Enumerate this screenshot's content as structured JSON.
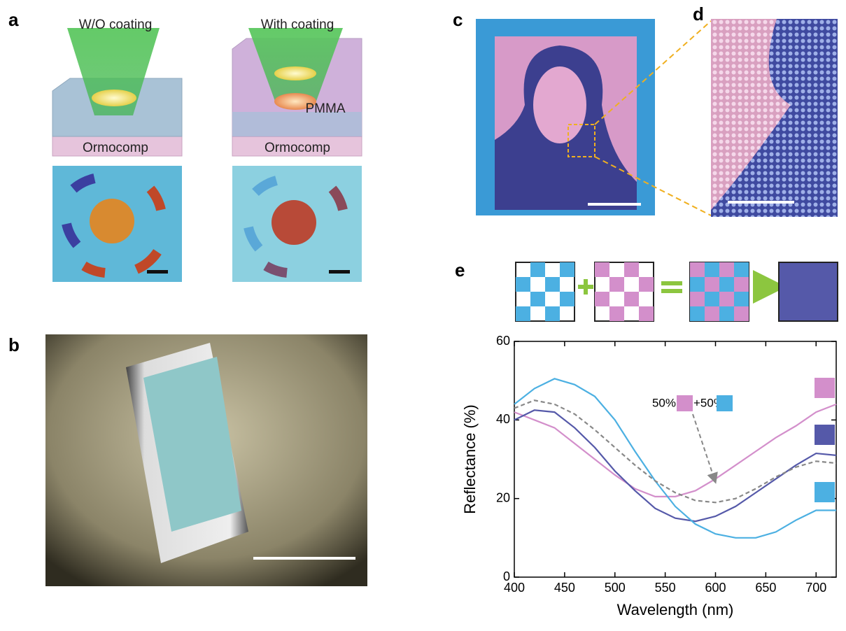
{
  "panels": {
    "a": {
      "label": "a",
      "left_title": "W/O coating",
      "right_title": "With coating",
      "pmma": "PMMA",
      "left_substrate": "Ormocomp",
      "right_substrate": "Ormocomp"
    },
    "b": {
      "label": "b"
    },
    "c": {
      "label": "c"
    },
    "d": {
      "label": "d"
    },
    "e": {
      "label": "e"
    }
  },
  "chart_data": {
    "type": "line",
    "xlabel": "Wavelength (nm)",
    "ylabel": "Reflectance (%)",
    "x": [
      400,
      420,
      440,
      460,
      480,
      500,
      520,
      540,
      560,
      580,
      600,
      620,
      640,
      660,
      680,
      700,
      720
    ],
    "series": [
      {
        "color": "#d38fcb",
        "values": [
          42,
          40,
          38,
          34,
          30,
          26,
          22.5,
          20.5,
          20.5,
          22,
          25,
          28.5,
          32,
          35.5,
          38.5,
          42,
          44
        ]
      },
      {
        "color": "#5559a9",
        "values": [
          40,
          42.5,
          42,
          38,
          33,
          27,
          22,
          17.5,
          15,
          14.2,
          15.5,
          18,
          21.5,
          25,
          28.5,
          31.5,
          31
        ]
      },
      {
        "color": "#4cb0e2",
        "values": [
          44,
          48,
          50.5,
          49,
          46,
          40,
          32,
          24.5,
          18,
          13.5,
          11,
          10,
          10,
          11.5,
          14.5,
          17,
          17
        ]
      },
      {
        "color": "#888888",
        "dashed": true,
        "values": [
          43,
          45,
          44,
          41.5,
          37.5,
          33,
          28.5,
          24.5,
          21.5,
          19.5,
          19,
          20,
          22.5,
          25.5,
          28,
          29.5,
          29
        ]
      }
    ],
    "annotation": {
      "left": "50%",
      "right": "+50%"
    },
    "xlim": [
      400,
      720
    ],
    "ylim": [
      0,
      60
    ],
    "xticks": [
      400,
      450,
      500,
      550,
      600,
      650,
      700
    ],
    "yticks": [
      0,
      20,
      40,
      60
    ]
  }
}
